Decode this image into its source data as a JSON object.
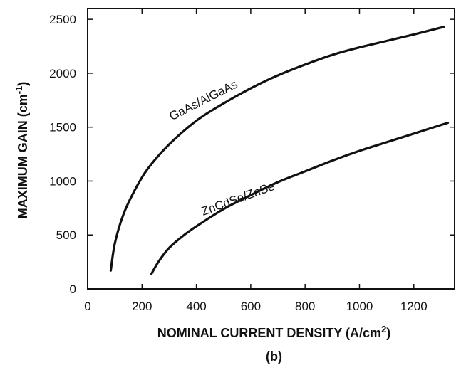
{
  "chart_data": {
    "type": "line",
    "xlabel": "NOMINAL CURRENT DENSITY (A/cm",
    "xlabel_sup": "2",
    "xlabel_tail": ")",
    "ylabel": "MAXIMUM GAIN (cm",
    "ylabel_sup": "-1",
    "ylabel_tail": ")",
    "panel_label": "(b)",
    "xlim": [
      0,
      1350
    ],
    "ylim": [
      0,
      2600
    ],
    "xticks": [
      "0",
      "200",
      "400",
      "600",
      "800",
      "1000",
      "1200"
    ],
    "yticks": [
      "0",
      "500",
      "1000",
      "1500",
      "2000",
      "2500"
    ],
    "series": [
      {
        "name": "GaAs/AlGaAs",
        "x": [
          85,
          100,
          130,
          170,
          220,
          300,
          400,
          500,
          600,
          700,
          800,
          900,
          1000,
          1100,
          1200,
          1310
        ],
        "y": [
          170,
          420,
          680,
          900,
          1110,
          1340,
          1560,
          1720,
          1860,
          1980,
          2080,
          2170,
          2240,
          2300,
          2360,
          2430
        ]
      },
      {
        "name": "ZnCdSe/ZnSe",
        "x": [
          235,
          260,
          300,
          350,
          400,
          500,
          600,
          700,
          800,
          900,
          1000,
          1100,
          1200,
          1325
        ],
        "y": [
          140,
          250,
          380,
          490,
          580,
          740,
          870,
          990,
          1090,
          1190,
          1280,
          1360,
          1440,
          1540
        ]
      }
    ]
  }
}
